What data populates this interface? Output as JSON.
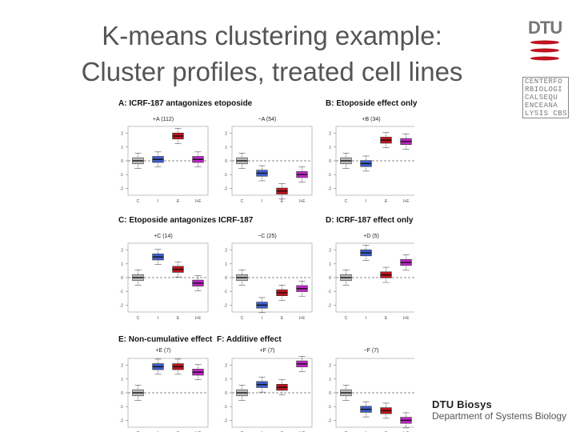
{
  "slide": {
    "title_line1": "K-means clustering example:",
    "title_line2": "Cluster profiles, treated cell lines"
  },
  "logos": {
    "dtu": "DTU",
    "cbs_rows": [
      "CENTERFO",
      "RBIOLOGI",
      "CALSEQU",
      "ENCEANA",
      "LYSIS CBS"
    ]
  },
  "footer": {
    "line1": "DTU Biosys",
    "line2": "Department of Systems Biology"
  },
  "colors": {
    "C": "#bdbdbd",
    "I": "#3f5fcf",
    "E": "#c0141e",
    "IE": "#c026c8"
  },
  "chart_data": {
    "type": "boxplot",
    "categories": [
      "C",
      "I",
      "E",
      "I+E"
    ],
    "y_ticks": [
      "2",
      "1",
      "0",
      "-1",
      "-2"
    ],
    "ylim": [
      -2.5,
      2.5
    ],
    "sections": [
      {
        "label": "A: ICRF-187 antagonizes etoposide"
      },
      {
        "label": "B: Etoposide effect only"
      },
      {
        "label": "C: Etoposide antagonizes ICRF-187"
      },
      {
        "label": "D: ICRF-187 effect only"
      },
      {
        "label": "E: Non-cumulative effect"
      },
      {
        "label": "F: Additive effect"
      }
    ],
    "panels": [
      {
        "title": "+A (112)",
        "medians": [
          0.0,
          0.1,
          1.8,
          0.1
        ]
      },
      {
        "title": "−A (54)",
        "medians": [
          0.0,
          -0.9,
          -2.2,
          -1.0
        ]
      },
      {
        "title": "+B (34)",
        "medians": [
          0.0,
          -0.2,
          1.5,
          1.4
        ]
      },
      {
        "title": "+C (14)",
        "medians": [
          0.0,
          1.5,
          0.6,
          -0.4
        ]
      },
      {
        "title": "−C (25)",
        "medians": [
          0.0,
          -2.0,
          -1.1,
          -0.8
        ]
      },
      {
        "title": "+D (5)",
        "medians": [
          0.0,
          1.8,
          0.2,
          1.1
        ]
      },
      {
        "title": "+E (7)",
        "medians": [
          0.0,
          1.9,
          1.9,
          1.5
        ]
      },
      {
        "title": "+F (7)",
        "medians": [
          0.0,
          0.6,
          0.4,
          2.1
        ]
      },
      {
        "title": "−F (7)",
        "medians": [
          0.0,
          -1.2,
          -1.3,
          -2.0
        ]
      }
    ]
  }
}
